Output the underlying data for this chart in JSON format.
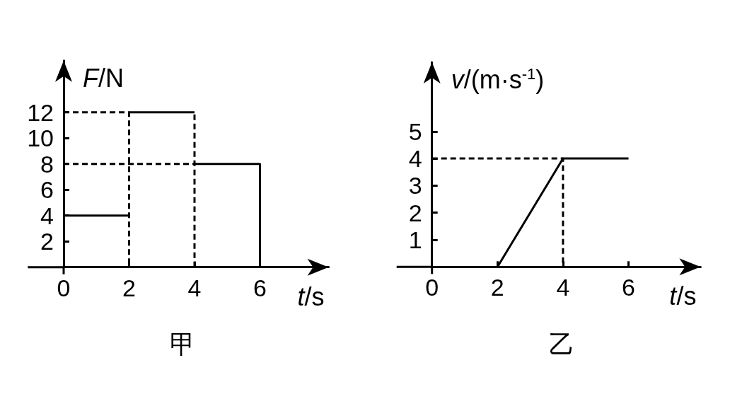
{
  "chart_data": [
    {
      "type": "line",
      "title": "甲",
      "xlabel": "t/s",
      "ylabel": "F/N",
      "xlim": [
        0,
        8.1
      ],
      "ylim": [
        0,
        16
      ],
      "xticks": [
        0,
        2,
        4,
        6
      ],
      "yticks": [
        2,
        4,
        6,
        8,
        10,
        12
      ],
      "marker": "none",
      "series": [
        {
          "color": "#000000",
          "x": [
            0,
            2
          ],
          "values": [
            4,
            4
          ]
        },
        {
          "color": "#000000",
          "x": [
            2,
            4
          ],
          "values": [
            12,
            12
          ]
        },
        {
          "color": "#000000",
          "x": [
            4,
            6,
            6
          ],
          "values": [
            8,
            8,
            0
          ]
        },
        {
          "color": "#000000",
          "line_style": "dashed",
          "x": [
            0,
            2,
            2
          ],
          "values": [
            12,
            12,
            0
          ]
        },
        {
          "color": "#000000",
          "line_style": "dashed",
          "x": [
            0,
            4
          ],
          "values": [
            8,
            8
          ]
        },
        {
          "color": "#000000",
          "line_style": "dashed",
          "x": [
            4,
            4
          ],
          "values": [
            0,
            12
          ]
        }
      ]
    },
    {
      "type": "line",
      "title": "乙",
      "xlabel": "t/s",
      "ylabel": "v/(m·s$^{-1}$)",
      "xlim": [
        0,
        8.2
      ],
      "ylim": [
        0,
        7.55
      ],
      "xticks": [
        0,
        2,
        4,
        6
      ],
      "yticks": [
        1,
        2,
        3,
        4,
        5
      ],
      "marker": "none",
      "series": [
        {
          "color": "#000000",
          "x": [
            2,
            4,
            6
          ],
          "values": [
            0,
            4,
            4
          ]
        },
        {
          "color": "#000000",
          "line_style": "dashed",
          "x": [
            0,
            4,
            4
          ],
          "values": [
            4,
            4,
            0
          ]
        }
      ]
    }
  ]
}
